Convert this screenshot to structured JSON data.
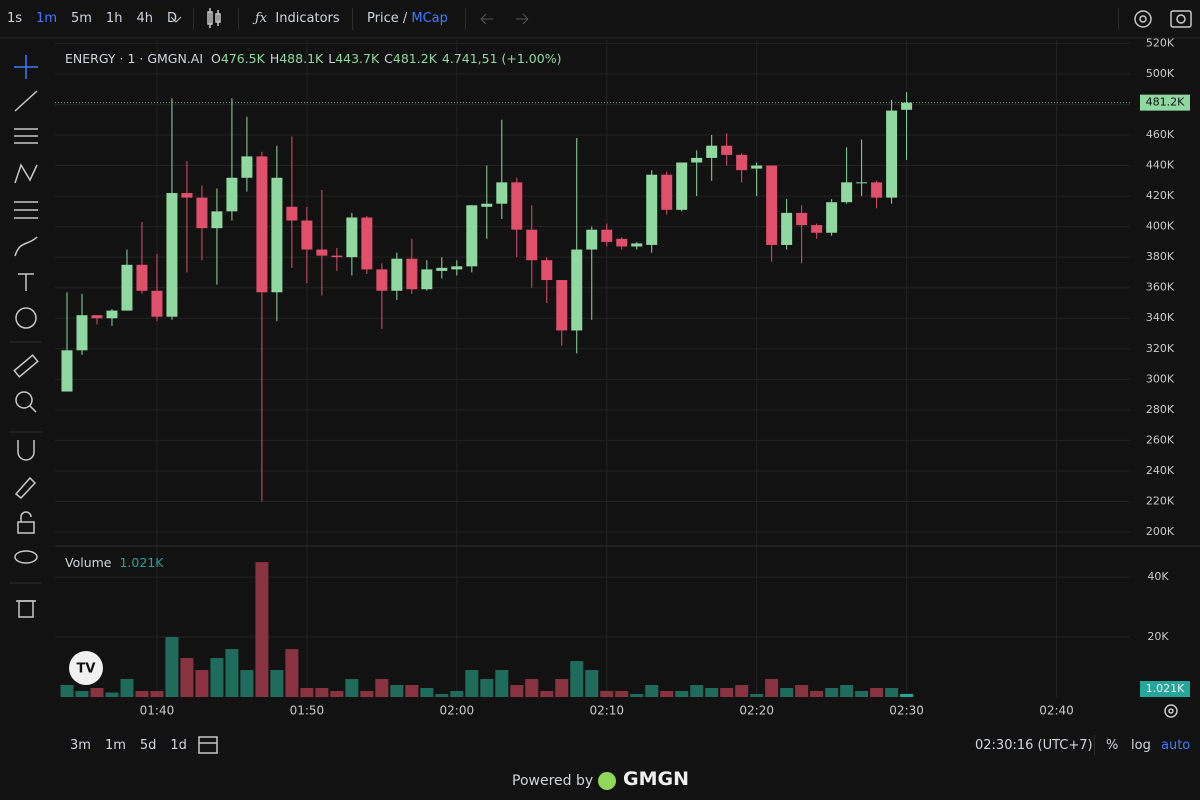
{
  "toolbar": {
    "intervals": [
      "1s",
      "1m",
      "5m",
      "1h",
      "4h",
      "D"
    ],
    "indicators": "Indicators",
    "price": "Price",
    "slash": "/",
    "mcap": "MCap"
  },
  "legend": {
    "symbol": "ENERGY · 1 · GMGN.AI",
    "ohlc": [
      {
        "key": "O",
        "value": "476.5K"
      },
      {
        "key": "H",
        "value": "488.1K"
      },
      {
        "key": "L",
        "value": "443.7K"
      },
      {
        "key": "C",
        "value": "481.2K"
      }
    ],
    "change": "4.741,51 (+1.00%)"
  },
  "bottom_bar": {
    "ranges": [
      "3m",
      "1m",
      "5d",
      "1d"
    ],
    "clock": "02:30:16 (UTC+7)",
    "percent": "%",
    "log": "log",
    "auto": "auto"
  },
  "footer": {
    "powered_by": "Powered by",
    "brand": "GMGN"
  },
  "chart_data": [
    {
      "type": "candlestick",
      "up_color": "#8fd8a0",
      "down_color": "#e0506a",
      "grid": true,
      "x": [
        94,
        95,
        96,
        97,
        98,
        99,
        100,
        101,
        102,
        103,
        104,
        105,
        106,
        107,
        108,
        109,
        110,
        111,
        112,
        113,
        114,
        115,
        116,
        117,
        118,
        119,
        120,
        121,
        122,
        123,
        124,
        125,
        126,
        127,
        128,
        129,
        130,
        131,
        132,
        133,
        134,
        135,
        136,
        137,
        138,
        139,
        140,
        141,
        142,
        143,
        144,
        145,
        146,
        147,
        148,
        149,
        150
      ],
      "open": [
        292,
        319,
        342,
        340,
        345,
        375,
        358,
        341,
        422,
        419,
        399,
        410,
        432,
        446,
        357,
        413,
        404,
        385,
        381,
        380,
        406,
        372,
        358,
        379,
        359,
        371,
        372,
        374,
        413,
        415,
        429,
        398,
        378,
        365,
        332,
        385,
        398,
        392,
        387,
        388,
        434,
        411,
        442,
        445,
        453,
        447,
        438,
        440,
        388,
        409,
        401,
        396,
        416,
        429,
        429,
        419,
        476.5
      ],
      "high": [
        357,
        356,
        342,
        346,
        385,
        403,
        382,
        484,
        443,
        427,
        425,
        484,
        472,
        449,
        453,
        459,
        413,
        424,
        386,
        409,
        407,
        376,
        383,
        392,
        378,
        380,
        378,
        414,
        440,
        470,
        432,
        414,
        380,
        365,
        458,
        400,
        402,
        393,
        390,
        437,
        436,
        442,
        450,
        460,
        461,
        448,
        442,
        440,
        418,
        414,
        402,
        418,
        452,
        457,
        430,
        483,
        488.1
      ],
      "low": [
        292,
        316,
        336,
        335,
        345,
        356,
        338,
        339,
        370,
        378,
        362,
        404,
        423,
        220,
        338,
        373,
        363,
        355,
        371,
        368,
        369,
        333,
        352,
        356,
        358,
        366,
        368,
        370,
        392,
        405,
        380,
        360,
        350,
        322,
        317,
        339,
        387,
        385,
        385,
        383,
        408,
        410,
        420,
        430,
        440,
        429,
        420,
        377,
        385,
        376,
        392,
        394,
        415,
        420,
        412,
        415,
        443.7
      ],
      "close": [
        319,
        342,
        340,
        345,
        375,
        358,
        341,
        422,
        419,
        399,
        410,
        432,
        446,
        357,
        432,
        404,
        385,
        381,
        380,
        406,
        372,
        358,
        379,
        359,
        372,
        373,
        374,
        414,
        415,
        429,
        398,
        378,
        365,
        332,
        385,
        398,
        390,
        387,
        389,
        434,
        411,
        442,
        445,
        453,
        447,
        437,
        440,
        388,
        409,
        401,
        396,
        416,
        429,
        429,
        419,
        476,
        481.2
      ],
      "last_label": "481.2K",
      "xlim": [
        93.2,
        164.9
      ],
      "xticks": [
        {
          "value": 100,
          "label": "01:40"
        },
        {
          "value": 110,
          "label": "01:50"
        },
        {
          "value": 120,
          "label": "02:00"
        },
        {
          "value": 130,
          "label": "02:10"
        },
        {
          "value": 140,
          "label": "02:20"
        },
        {
          "value": 150,
          "label": "02:30"
        },
        {
          "value": 160,
          "label": "02:40"
        }
      ],
      "ylim": [
        191.5,
        519.6
      ],
      "yticks": [
        {
          "value": 200,
          "label": "200K"
        },
        {
          "value": 220,
          "label": "220K"
        },
        {
          "value": 240,
          "label": "240K"
        },
        {
          "value": 260,
          "label": "260K"
        },
        {
          "value": 280,
          "label": "280K"
        },
        {
          "value": 300,
          "label": "300K"
        },
        {
          "value": 320,
          "label": "320K"
        },
        {
          "value": 340,
          "label": "340K"
        },
        {
          "value": 360,
          "label": "360K"
        },
        {
          "value": 380,
          "label": "380K"
        },
        {
          "value": 400,
          "label": "400K"
        },
        {
          "value": 420,
          "label": "420K"
        },
        {
          "value": 440,
          "label": "440K"
        },
        {
          "value": 460,
          "label": "460K"
        },
        {
          "value": 480,
          "label": "480K"
        },
        {
          "value": 500,
          "label": "500K"
        },
        {
          "value": 520,
          "label": "520K"
        }
      ]
    },
    {
      "type": "bar",
      "title": "Volume",
      "up_color": "#1f6b5c",
      "down_color": "#8a3340",
      "last_color": "#26a69a",
      "x": [
        94,
        95,
        96,
        97,
        98,
        99,
        100,
        101,
        102,
        103,
        104,
        105,
        106,
        107,
        108,
        109,
        110,
        111,
        112,
        113,
        114,
        115,
        116,
        117,
        118,
        119,
        120,
        121,
        122,
        123,
        124,
        125,
        126,
        127,
        128,
        129,
        130,
        131,
        132,
        133,
        134,
        135,
        136,
        137,
        138,
        139,
        140,
        141,
        142,
        143,
        144,
        145,
        146,
        147,
        148,
        149,
        150
      ],
      "values": [
        4,
        2,
        3,
        1.5,
        6,
        2,
        2,
        20,
        13,
        9,
        13,
        16,
        9,
        45,
        9,
        16,
        3,
        3,
        2,
        6,
        2,
        6,
        4,
        4,
        3,
        1,
        2,
        9,
        6,
        9,
        4,
        6,
        2,
        6,
        12,
        9,
        2,
        2,
        1,
        4,
        2,
        2,
        4,
        3,
        3,
        4,
        1,
        6,
        3,
        4,
        2,
        3,
        4,
        2,
        3,
        3,
        1.021
      ],
      "last_label": "1.021K",
      "ylim": [
        0,
        49.7
      ],
      "yticks": [
        {
          "value": 20,
          "label": "20K"
        },
        {
          "value": 40,
          "label": "40K"
        }
      ]
    }
  ]
}
